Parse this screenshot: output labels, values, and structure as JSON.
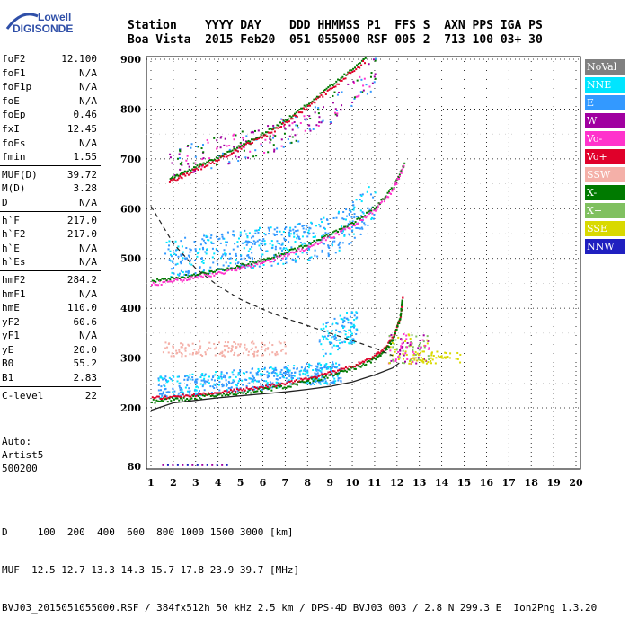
{
  "logo": {
    "line1": "Lowell",
    "line2": "DIGISONDE"
  },
  "header": {
    "row1": "Station    YYYY DAY    DDD HHMMSS P1  FFS S  AXN PPS IGA PS",
    "row2": "Boa Vista  2015 Feb20  051 055000 RSF 005 2  713 100 03+ 30"
  },
  "params": {
    "group1": [
      {
        "label": "foF2",
        "value": "12.100"
      },
      {
        "label": "foF1",
        "value": "N/A"
      },
      {
        "label": "foF1p",
        "value": "N/A"
      },
      {
        "label": "foE",
        "value": "N/A"
      },
      {
        "label": "foEp",
        "value": "0.46"
      },
      {
        "label": "fxI",
        "value": "12.45"
      },
      {
        "label": "foEs",
        "value": "N/A"
      },
      {
        "label": "fmin",
        "value": "1.55"
      }
    ],
    "group2": [
      {
        "label": "MUF(D)",
        "value": "39.72"
      },
      {
        "label": "M(D)",
        "value": "3.28"
      },
      {
        "label": "D",
        "value": "N/A"
      }
    ],
    "group3": [
      {
        "label": "h`F",
        "value": "217.0"
      },
      {
        "label": "h`F2",
        "value": "217.0"
      },
      {
        "label": "h`E",
        "value": "N/A"
      },
      {
        "label": "h`Es",
        "value": "N/A"
      }
    ],
    "group4": [
      {
        "label": "hmF2",
        "value": "284.2"
      },
      {
        "label": "hmF1",
        "value": "N/A"
      },
      {
        "label": "hmE",
        "value": "110.0"
      },
      {
        "label": "yF2",
        "value": "60.6"
      },
      {
        "label": "yF1",
        "value": "N/A"
      },
      {
        "label": "yE",
        "value": "20.0"
      },
      {
        "label": "B0",
        "value": "55.2"
      },
      {
        "label": "B1",
        "value": "2.83"
      }
    ],
    "group5": [
      {
        "label": "C-level",
        "value": "22"
      }
    ]
  },
  "auto": {
    "line1": "Auto:",
    "line2": "Artist5",
    "line3": "500200"
  },
  "legend": [
    {
      "label": "NoVal",
      "color": "#808080"
    },
    {
      "label": "NNE",
      "color": "#00e5ff"
    },
    {
      "label": "E",
      "color": "#3399ff"
    },
    {
      "label": "W",
      "color": "#a000a0"
    },
    {
      "label": "Vo-",
      "color": "#ff33cc"
    },
    {
      "label": "Vo+",
      "color": "#e0002a"
    },
    {
      "label": "SSW",
      "color": "#f4b0a8"
    },
    {
      "label": "X-",
      "color": "#007a00"
    },
    {
      "label": "X+",
      "color": "#80c060"
    },
    {
      "label": "SSE",
      "color": "#d9d900"
    },
    {
      "label": "NNW",
      "color": "#2020c0"
    }
  ],
  "footer": {
    "line1": "D     100  200  400  600  800 1000 1500 3000 [km]",
    "line2": "MUF  12.5 12.7 13.3 14.3 15.7 17.8 23.9 39.7 [MHz]",
    "line3": "BVJ03_2015051055000.RSF / 384fx512h 50 kHz 2.5 km / DPS-4D BVJ03 003 / 2.8 N 299.3 E  Ion2Png 1.3.20"
  },
  "chart_data": {
    "type": "scatter",
    "xticks": [
      "1",
      "2",
      "3",
      "4",
      "5",
      "6",
      "7",
      "8",
      "9",
      "10",
      "11",
      "12",
      "13",
      "14",
      "15",
      "16",
      "17",
      "18",
      "19",
      "20"
    ],
    "yticks": [
      "80",
      "200",
      "300",
      "400",
      "500",
      "600",
      "700",
      "800",
      "900"
    ],
    "xlim": [
      1,
      20
    ],
    "grid": true,
    "series": [
      {
        "name": "X-",
        "values": [
          [
            1.0,
            215
          ],
          [
            2,
            218
          ],
          [
            3,
            222
          ],
          [
            4,
            227
          ],
          [
            5,
            232
          ],
          [
            6,
            238
          ],
          [
            7,
            245
          ],
          [
            8,
            255
          ],
          [
            9,
            266
          ],
          [
            10,
            280
          ],
          [
            10.8,
            295
          ],
          [
            11.4,
            315
          ],
          [
            11.8,
            340
          ],
          [
            12.1,
            380
          ],
          [
            12.2,
            420
          ]
        ]
      },
      {
        "name": "Vo-",
        "values": [
          [
            1.0,
            450
          ],
          [
            2,
            456
          ],
          [
            3,
            464
          ],
          [
            4,
            472
          ],
          [
            5,
            482
          ],
          [
            6,
            494
          ],
          [
            7,
            508
          ],
          [
            8,
            525
          ],
          [
            9,
            545
          ],
          [
            10,
            568
          ],
          [
            11,
            600
          ],
          [
            11.8,
            640
          ],
          [
            12.3,
            690
          ]
        ]
      },
      {
        "name": "Vo+",
        "values": [
          [
            1.8,
            655
          ],
          [
            2.5,
            670
          ],
          [
            3.5,
            690
          ],
          [
            4.5,
            712
          ],
          [
            5.5,
            735
          ],
          [
            6.5,
            760
          ],
          [
            7.5,
            790
          ],
          [
            8.5,
            825
          ],
          [
            9.5,
            860
          ],
          [
            10.6,
            900
          ]
        ]
      }
    ],
    "profile_curve": [
      [
        1,
        195
      ],
      [
        2,
        210
      ],
      [
        3,
        215
      ],
      [
        4,
        220
      ],
      [
        5,
        224
      ],
      [
        6,
        228
      ],
      [
        7,
        232
      ],
      [
        8,
        237
      ],
      [
        9,
        243
      ],
      [
        10,
        252
      ],
      [
        11,
        266
      ],
      [
        11.8,
        280
      ],
      [
        12.1,
        290
      ]
    ],
    "dashed_curve": [
      [
        1,
        605
      ],
      [
        2,
        530
      ],
      [
        3,
        480
      ],
      [
        4,
        445
      ],
      [
        5,
        418
      ],
      [
        6,
        398
      ],
      [
        7,
        380
      ],
      [
        8,
        365
      ],
      [
        9,
        350
      ],
      [
        10,
        335
      ],
      [
        11,
        320
      ],
      [
        11.8,
        305
      ]
    ]
  }
}
